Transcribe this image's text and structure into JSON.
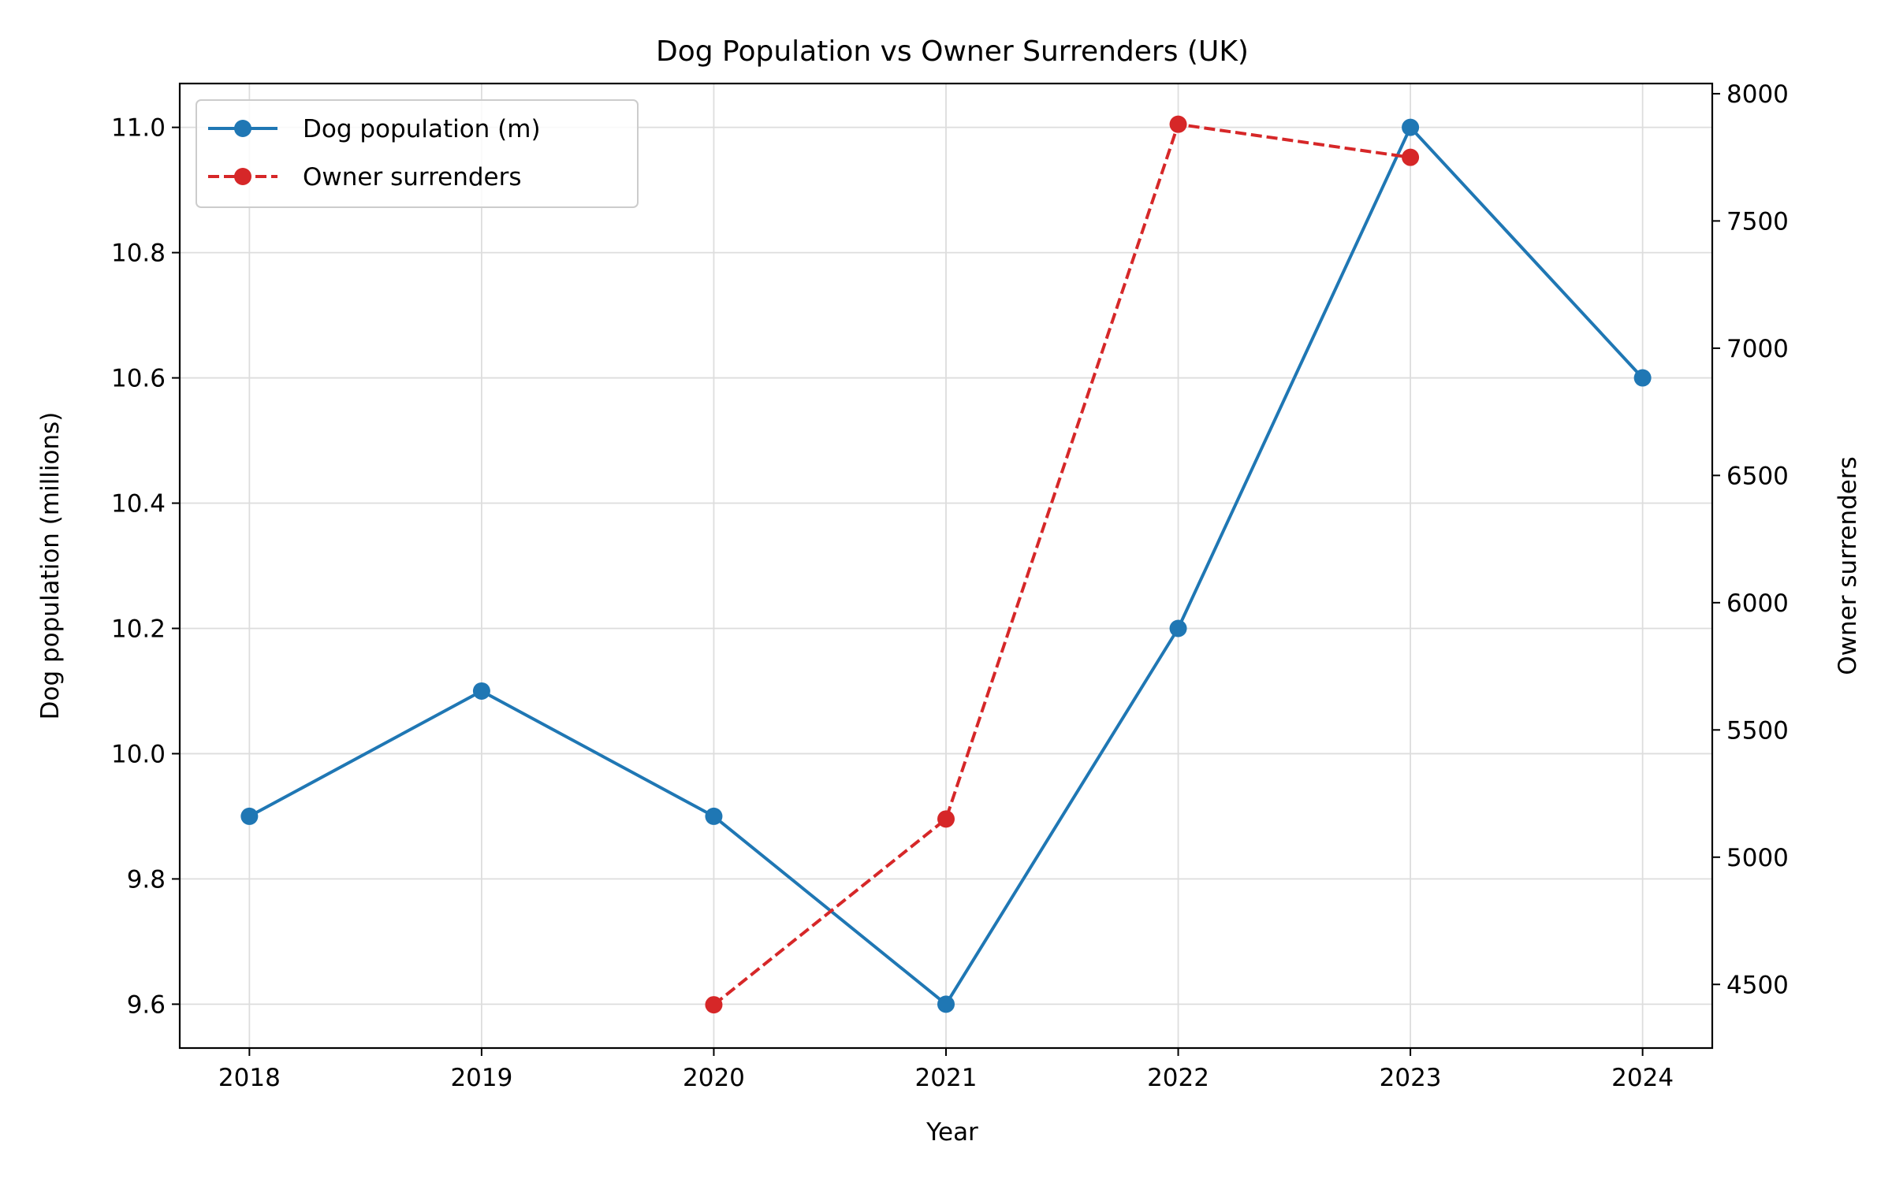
{
  "chart_data": {
    "type": "line",
    "title": "Dog Population vs Owner Surrenders (UK)",
    "xlabel": "Year",
    "ylabel_left": "Dog population (millions)",
    "ylabel_right": "Owner surrenders",
    "x": [
      2018,
      2019,
      2020,
      2021,
      2022,
      2023,
      2024
    ],
    "x_ticks": [
      "2018",
      "2019",
      "2020",
      "2021",
      "2022",
      "2023",
      "2024"
    ],
    "xlim": [
      2017.7,
      2024.3
    ],
    "y_left_ticks": [
      "9.6",
      "9.8",
      "10.0",
      "10.2",
      "10.4",
      "10.6",
      "10.8",
      "11.0"
    ],
    "y_left_tick_values": [
      9.6,
      9.8,
      10.0,
      10.2,
      10.4,
      10.6,
      10.8,
      11.0
    ],
    "ylim_left": [
      9.53,
      11.07
    ],
    "y_right_ticks": [
      "4500",
      "5000",
      "5500",
      "6000",
      "6500",
      "7000",
      "7500",
      "8000"
    ],
    "y_right_tick_values": [
      4500,
      5000,
      5500,
      6000,
      6500,
      7000,
      7500,
      8000
    ],
    "ylim_right": [
      4250,
      8040
    ],
    "grid": true,
    "legend_position": "top-left",
    "series": [
      {
        "name": "Dog population (m)",
        "axis": "left",
        "color": "#1f77b4",
        "style": "solid",
        "values": [
          9.9,
          10.1,
          9.9,
          9.6,
          10.2,
          11.0,
          10.6
        ]
      },
      {
        "name": "Owner surrenders",
        "axis": "right",
        "color": "#d62728",
        "style": "dashed",
        "values": [
          null,
          null,
          4420,
          5150,
          7880,
          7750,
          null
        ]
      }
    ]
  }
}
